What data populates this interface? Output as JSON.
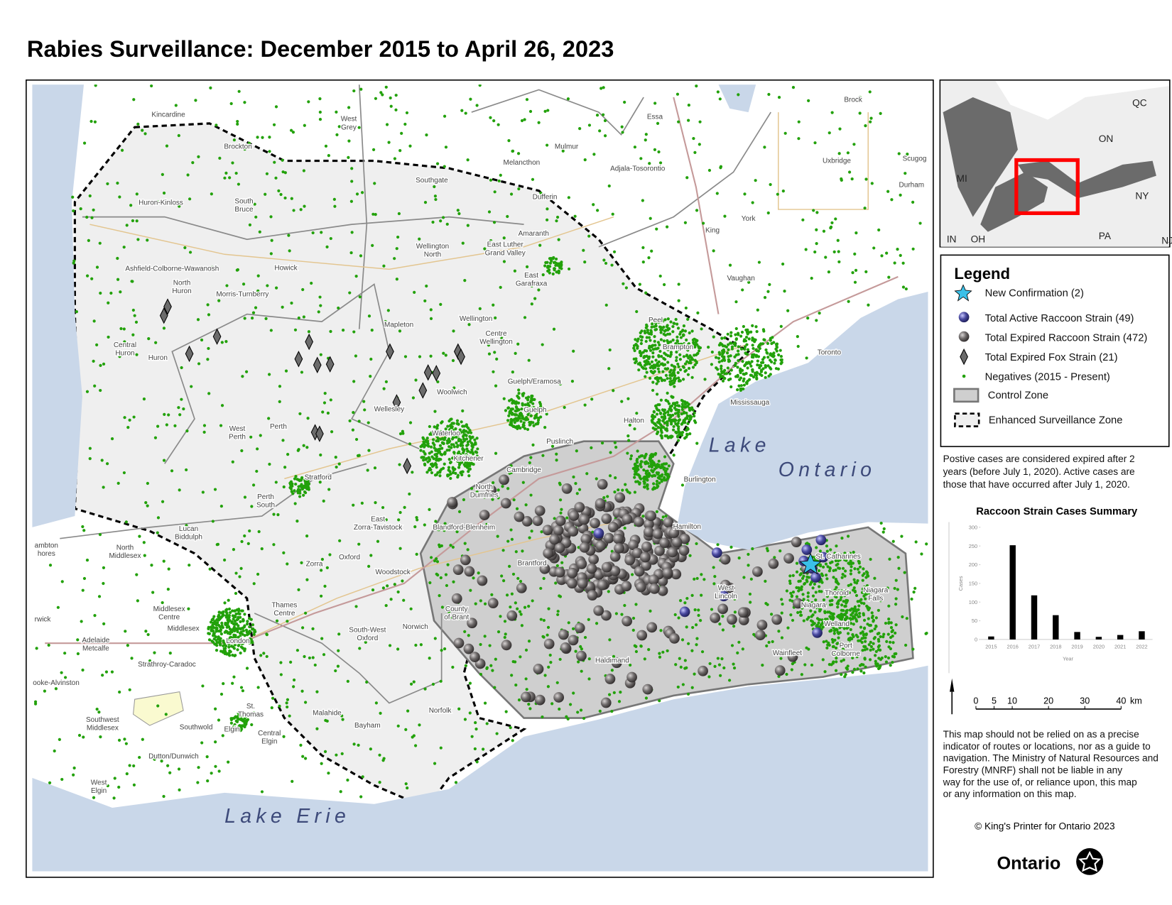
{
  "header": {
    "title": "Rabies Surveillance: December 2015 to April 26, 2023"
  },
  "map": {
    "places": [
      [
        "Kincardine"
      ],
      [
        "West",
        "Grey"
      ],
      [
        "Essa"
      ],
      [
        "Brock"
      ],
      [
        "Brockton"
      ],
      [
        "Melancthon"
      ],
      [
        "Mulmur"
      ],
      [
        "Adjala-Tosorontio"
      ],
      [
        "Uxbridge"
      ],
      [
        "Scugog"
      ],
      [
        "Southgate"
      ],
      [
        "Durham"
      ],
      [
        "Huron-Kinloss"
      ],
      [
        "South",
        "Bruce"
      ],
      [
        "Dufferin"
      ],
      [
        "Amaranth"
      ],
      [
        "Wellington",
        "North"
      ],
      [
        "East Luther",
        "Grand Valley"
      ],
      [
        "King"
      ],
      [
        "York"
      ],
      [
        "Ashfield-Colborne-Wawanosh"
      ],
      [
        "Howick"
      ],
      [
        "North",
        "Huron"
      ],
      [
        "Morris-Turnberry"
      ],
      [
        "East",
        "Garafraxa"
      ],
      [
        "Vaughan"
      ],
      [
        "Peel"
      ],
      [
        "Wellington"
      ],
      [
        "Mapleton"
      ],
      [
        "Centre",
        "Wellington"
      ],
      [
        "Central",
        "Huron"
      ],
      [
        "Huron"
      ],
      [
        "Brampton"
      ],
      [
        "Toronto"
      ],
      [
        "Guelph/Eramosa"
      ],
      [
        "Woolwich"
      ],
      [
        "Wellesley"
      ],
      [
        "Guelph"
      ],
      [
        "Mississauga"
      ],
      [
        "Perth"
      ],
      [
        "West",
        "Perth"
      ],
      [
        "Waterloo"
      ],
      [
        "Halton"
      ],
      [
        "Puslinch"
      ],
      [
        "Kitchener"
      ],
      [
        "Cambridge"
      ],
      [
        "Stratford"
      ],
      [
        "Burlington"
      ],
      [
        "North",
        "Dumfries"
      ],
      [
        "Perth",
        "South"
      ],
      [
        "East",
        "Zorra-Tavistock"
      ],
      [
        "Blandford-Blenheim"
      ],
      [
        "Hamilton"
      ],
      [
        "Lucan",
        "Biddulph"
      ],
      [
        "ambton",
        "hores"
      ],
      [
        "North",
        "Middlesex"
      ],
      [
        "St. Catharines"
      ],
      [
        "Oxford"
      ],
      [
        "Brantford"
      ],
      [
        "Zorra"
      ],
      [
        "Woodstock"
      ],
      [
        "Thorold"
      ],
      [
        "Niagara",
        "Falls"
      ],
      [
        "West",
        "Lincoln"
      ],
      [
        "Niagara"
      ],
      [
        "Thames",
        "Centre"
      ],
      [
        "Middlesex",
        "Centre"
      ],
      [
        "rwick"
      ],
      [
        "County",
        "of Brant"
      ],
      [
        "Welland"
      ],
      [
        "Middlesex"
      ],
      [
        "Norwich"
      ],
      [
        "South-West",
        "Oxford"
      ],
      [
        "London"
      ],
      [
        "Adelaide",
        "Metcalfe"
      ],
      [
        "Port",
        "Colborne"
      ],
      [
        "Wainfleet"
      ],
      [
        "Haldimand"
      ],
      [
        "Strathroy-Caradoc"
      ],
      [
        "ooke-Alvinston"
      ],
      [
        "St.",
        "Thomas"
      ],
      [
        "Norfolk"
      ],
      [
        "Malahide"
      ],
      [
        "Southwest",
        "Middlesex"
      ],
      [
        "Southwold"
      ],
      [
        "Elgin"
      ],
      [
        "Central",
        "Elgin"
      ],
      [
        "Bayham"
      ],
      [
        "Dutton/Dunwich"
      ],
      [
        "West",
        "Elgin"
      ]
    ],
    "lakes": {
      "ontario": [
        "Lake",
        "Ontario"
      ],
      "erie": "Lake Erie"
    }
  },
  "inset": {
    "labels": [
      "QC",
      "ON",
      "MI",
      "NY",
      "IN",
      "OH",
      "PA",
      "NJ"
    ]
  },
  "legend": {
    "title": "Legend",
    "items": [
      "New Confirmation (2)",
      "Total Active Raccoon Strain (49)",
      "Total Expired Raccoon Strain (472)",
      "Total Expired Fox Strain (21)",
      "Negatives (2015 - Present)",
      "Control Zone",
      "Enhanced Surveillance Zone"
    ]
  },
  "notes": {
    "expiry": [
      "Postive cases are considered expired after 2",
      "years (before July 1, 2020). Active cases are",
      "those that have occurred after July 1, 2020."
    ],
    "disclaimer": [
      "This map should not be relied on as a precise",
      "indicator of routes or locations, nor as a guide to",
      "navigation. The Ministry of Natural Resources and",
      "Forestry (MNRF) shall not be liable in any",
      "way for the use of, or reliance upon, this map",
      "or any information on this map."
    ]
  },
  "chart_data": {
    "type": "bar",
    "title": "Raccoon Strain Cases Summary",
    "x_label": "Year",
    "y_label": "Cases",
    "categories": [
      "2015",
      "2016",
      "2017",
      "2018",
      "2019",
      "2020",
      "2021",
      "2022"
    ],
    "values": [
      8,
      252,
      118,
      65,
      20,
      7,
      12,
      22
    ],
    "color": "#000000",
    "ylim": [
      0,
      300
    ],
    "yticks": [
      0,
      50,
      100,
      150,
      200,
      250,
      300
    ]
  },
  "scale_bar": {
    "ticks": [
      0,
      5,
      10,
      20,
      30,
      40
    ],
    "unit": "km"
  },
  "footer": {
    "copyright": "© King's Printer for Ontario 2023",
    "logo": "Ontario"
  }
}
